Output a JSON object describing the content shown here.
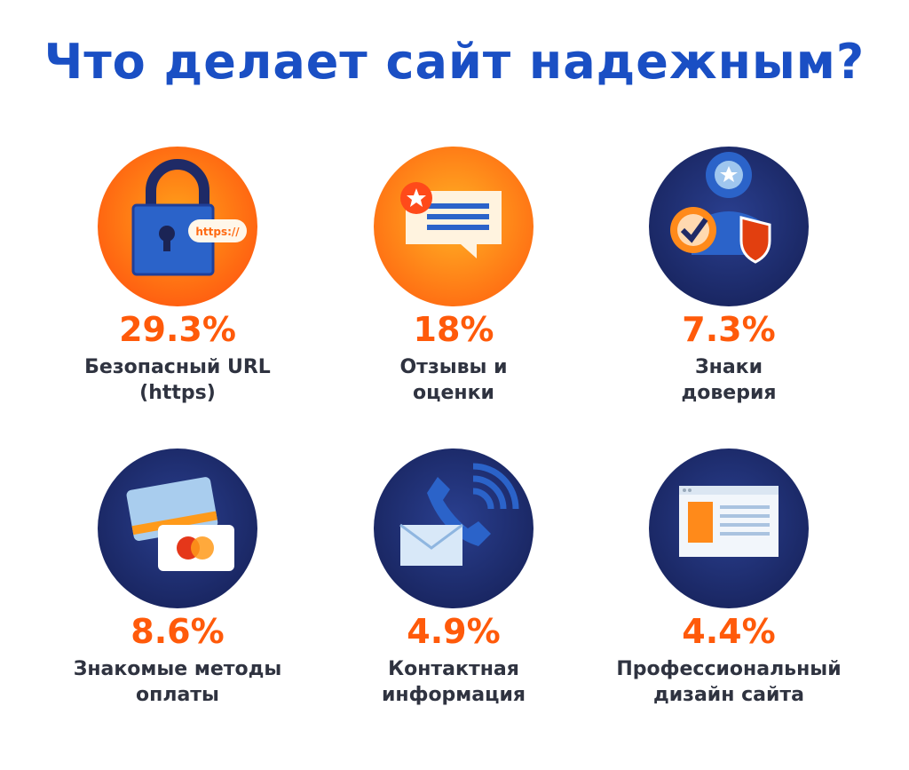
{
  "title": "Что делает сайт надежным?",
  "accent_colors": {
    "title_blue": "#1a4fc4",
    "percent_orange": "#ff5a0a",
    "text_dark": "#2f3340",
    "circle_orange": "#ff6a12",
    "circle_navy": "#1c2a6b"
  },
  "items": [
    {
      "icon": "lock-https-icon",
      "https_text": "https://",
      "percent": "29.3%",
      "label_line1": "Безопасный URL",
      "label_line2": "(https)"
    },
    {
      "icon": "review-message-icon",
      "percent": "18%",
      "label_line1": "Отзывы и",
      "label_line2": "оценки"
    },
    {
      "icon": "trust-badge-icon",
      "percent": "7.3%",
      "label_line1": "Знаки",
      "label_line2": "доверия"
    },
    {
      "icon": "payment-cards-icon",
      "percent": "8.6%",
      "label_line1": "Знакомые методы",
      "label_line2": "оплаты"
    },
    {
      "icon": "phone-mail-icon",
      "percent": "4.9%",
      "label_line1": "Контактная",
      "label_line2": "информация"
    },
    {
      "icon": "website-layout-icon",
      "percent": "4.4%",
      "label_line1": "Профессиональный",
      "label_line2": "дизайн сайта"
    }
  ]
}
